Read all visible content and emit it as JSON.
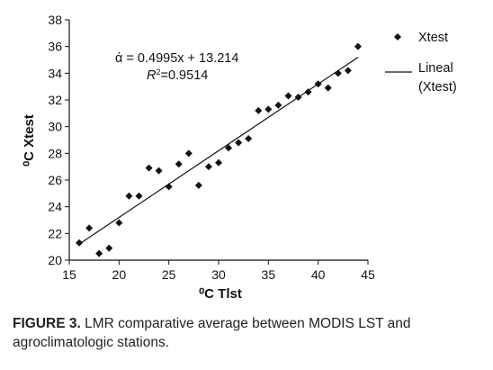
{
  "chart_data": {
    "type": "scatter",
    "xlabel": "⁰C Tlst",
    "ylabel": "⁰C Xtest",
    "xlim": [
      15,
      45
    ],
    "ylim": [
      20,
      38
    ],
    "xticks": [
      15,
      20,
      25,
      30,
      35,
      40,
      45
    ],
    "yticks": [
      20,
      22,
      24,
      26,
      28,
      30,
      32,
      34,
      36,
      38
    ],
    "grid": false,
    "legend_position": "top-right",
    "series": [
      {
        "name": "Xtest",
        "marker": "diamond",
        "color": "#111111",
        "points": [
          [
            16.0,
            21.3
          ],
          [
            17.0,
            22.4
          ],
          [
            18.0,
            20.5
          ],
          [
            19.0,
            20.9
          ],
          [
            20.0,
            22.8
          ],
          [
            21.0,
            24.8
          ],
          [
            22.0,
            24.8
          ],
          [
            23.0,
            26.9
          ],
          [
            24.0,
            26.7
          ],
          [
            25.0,
            25.5
          ],
          [
            26.0,
            27.2
          ],
          [
            27.0,
            28.0
          ],
          [
            28.0,
            25.6
          ],
          [
            29.0,
            27.0
          ],
          [
            30.0,
            27.3
          ],
          [
            31.0,
            28.4
          ],
          [
            32.0,
            28.8
          ],
          [
            33.0,
            29.1
          ],
          [
            34.0,
            31.2
          ],
          [
            35.0,
            31.3
          ],
          [
            36.0,
            31.6
          ],
          [
            37.0,
            32.3
          ],
          [
            38.0,
            32.2
          ],
          [
            39.0,
            32.6
          ],
          [
            40.0,
            33.2
          ],
          [
            41.0,
            32.9
          ],
          [
            42.0,
            34.0
          ],
          [
            43.0,
            34.2
          ],
          [
            44.0,
            36.0
          ]
        ]
      }
    ],
    "trendline": {
      "name_line1": "Lineal",
      "name_line2": "(Xtest)",
      "slope": 0.4995,
      "intercept": 13.214,
      "x_range": [
        16,
        44
      ],
      "color": "#111111"
    },
    "annotations": {
      "equation": "ά = 0.4995x + 13.214",
      "r2_label": "R",
      "r2_sup": "2",
      "r2_value": "=0.9514"
    }
  },
  "caption": {
    "label": "FIGURE 3.",
    "text": " LMR comparative average between MODIS LST and agroclimatologic stations."
  }
}
